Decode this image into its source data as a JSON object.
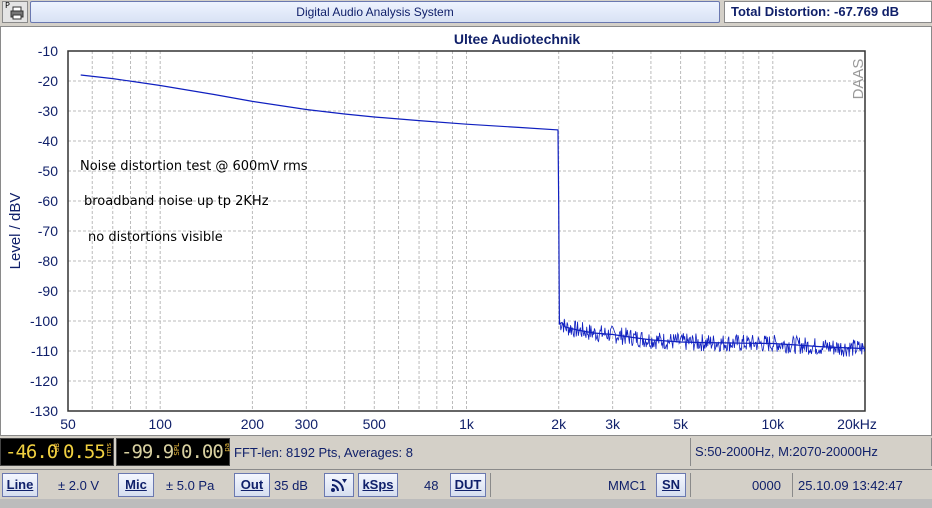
{
  "window": {
    "title": "Digital Audio Analysis System",
    "print_letter": "P",
    "total_distortion": "Total Distortion: -67.769 dB"
  },
  "chart_data": {
    "type": "line",
    "title": "Ultee Audiotechnik",
    "watermark": "DAAS",
    "ylabel": "Level / dBV",
    "xlabel": "",
    "xscale": "log",
    "xlim": [
      50,
      20000
    ],
    "ylim": [
      -130,
      -10
    ],
    "yticks": [
      -10,
      -20,
      -30,
      -40,
      -50,
      -60,
      -70,
      -80,
      -90,
      -100,
      -110,
      -120,
      -130
    ],
    "xticks": [
      {
        "value": 50,
        "label": "50"
      },
      {
        "value": 100,
        "label": "100"
      },
      {
        "value": 200,
        "label": "200"
      },
      {
        "value": 300,
        "label": "300"
      },
      {
        "value": 500,
        "label": "500"
      },
      {
        "value": 1000,
        "label": "1k"
      },
      {
        "value": 2000,
        "label": "2k"
      },
      {
        "value": 3000,
        "label": "3k"
      },
      {
        "value": 5000,
        "label": "5k"
      },
      {
        "value": 10000,
        "label": "10k"
      },
      {
        "value": 20000,
        "label": "20kHz"
      }
    ],
    "grid": true,
    "series": [
      {
        "color": "#1020c0",
        "x": [
          55,
          70,
          100,
          150,
          200,
          300,
          400,
          500,
          700,
          1000,
          1500,
          1990,
          2000,
          2010,
          2050,
          2100,
          2300,
          2600,
          3000,
          3500,
          4000,
          5000,
          6000,
          7000,
          8000,
          10000,
          12000,
          14000,
          16000,
          18000,
          20000
        ],
        "y": [
          -18,
          -19.2,
          -21.5,
          -24.5,
          -26.8,
          -29.5,
          -31,
          -32,
          -33.2,
          -34.4,
          -35.5,
          -36.3,
          -61,
          -101,
          -100.5,
          -102,
          -103,
          -104,
          -104.5,
          -105.5,
          -106.3,
          -107,
          -107.2,
          -107.3,
          -107.4,
          -107.5,
          -108,
          -108.5,
          -108.8,
          -109,
          -109.2
        ]
      }
    ],
    "annotations": [
      "Noise distortion test @ 600mV rms",
      "broadband noise up tp 2KHz",
      "no distortions visible"
    ]
  },
  "status": {
    "lcd1_value": "-46.0",
    "lcd1_unit1": "dB",
    "lcd1_value2": "0.55",
    "lcd1_unit2": "rms",
    "lcd2_value": "-99.9",
    "lcd2_unit": "SPL",
    "lcd2_value2": "0.00",
    "lcd2_unit2": "pa",
    "fft_info": "FFT-len: 8192 Pts, Averages: 8",
    "range_info": "S:50-2000Hz, M:2070-20000Hz"
  },
  "toolbar": {
    "line_label": "Line",
    "line_value": "± 2.0 V",
    "mic_label": "Mic",
    "mic_value": "± 5.0 Pa",
    "out_label": "Out",
    "out_value": "35 dB",
    "ksps_label": "kSps",
    "ksps_value": "48",
    "dut_label": "DUT",
    "mmc_label": "MMC1",
    "sn_label": "SN",
    "counter": "0000",
    "datetime": "25.10.09 13:42:47"
  }
}
